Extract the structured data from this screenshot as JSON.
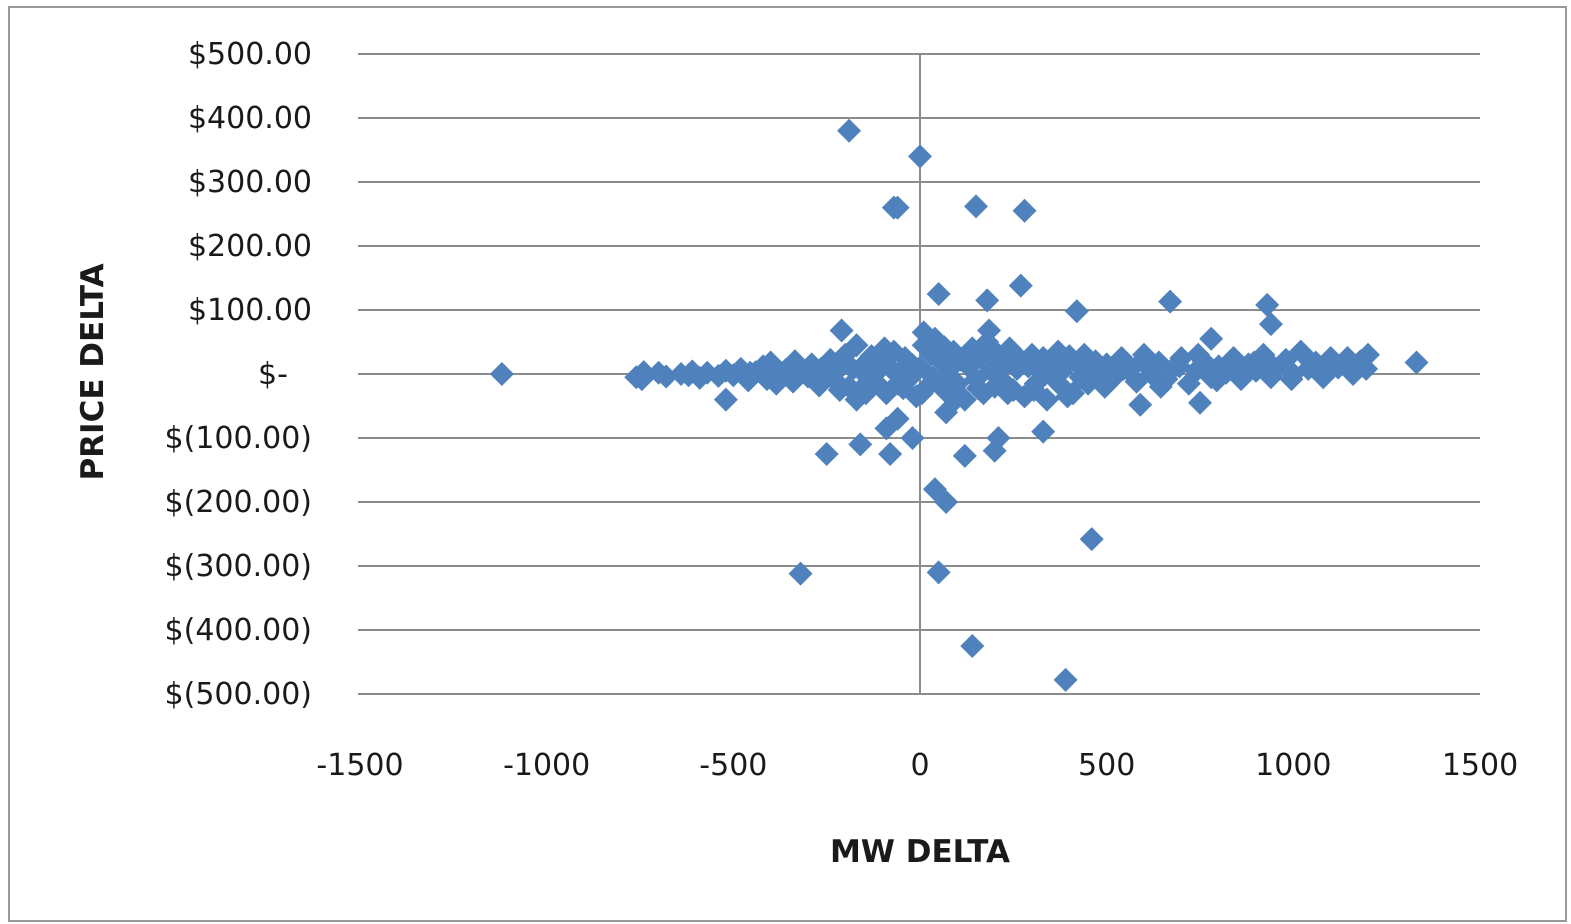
{
  "chart_data": {
    "type": "scatter",
    "xlabel": "MW DELTA",
    "ylabel": "PRICE DELTA",
    "xlim": [
      -1500,
      1500
    ],
    "ylim": [
      -500,
      500
    ],
    "grid": "horizontal major gridlines",
    "marker": "diamond",
    "color": "#4f81bd",
    "x_ticks": [
      "-1500",
      "-1000",
      "-500",
      "0",
      "500",
      "1000",
      "1500"
    ],
    "y_ticks": [
      "$500.00",
      "$400.00",
      "$300.00",
      "$200.00",
      "$100.00",
      "$-",
      "$(100.00)",
      "$(200.00)",
      "$(300.00)",
      "$(400.00)",
      "$(500.00)"
    ],
    "y_tick_values": [
      500,
      400,
      300,
      200,
      100,
      0,
      -100,
      -200,
      -300,
      -400,
      -500
    ],
    "x_tick_values": [
      -1500,
      -1000,
      -500,
      0,
      500,
      1000,
      1500
    ],
    "outliers": [
      {
        "x": -1120,
        "y": 0
      },
      {
        "x": -190,
        "y": 380
      },
      {
        "x": 0,
        "y": 340
      },
      {
        "x": -70,
        "y": 260
      },
      {
        "x": -60,
        "y": 260
      },
      {
        "x": 150,
        "y": 262
      },
      {
        "x": 280,
        "y": 255
      },
      {
        "x": 270,
        "y": 138
      },
      {
        "x": 50,
        "y": 125
      },
      {
        "x": 180,
        "y": 115
      },
      {
        "x": 420,
        "y": 98
      },
      {
        "x": 670,
        "y": 113
      },
      {
        "x": 930,
        "y": 108
      },
      {
        "x": 940,
        "y": 78
      },
      {
        "x": -210,
        "y": 68
      },
      {
        "x": 10,
        "y": 65
      },
      {
        "x": 185,
        "y": 68
      },
      {
        "x": 780,
        "y": 55
      },
      {
        "x": 1200,
        "y": 30
      },
      {
        "x": 1330,
        "y": 18
      },
      {
        "x": -520,
        "y": -40
      },
      {
        "x": -170,
        "y": -40
      },
      {
        "x": 70,
        "y": -60
      },
      {
        "x": 590,
        "y": -48
      },
      {
        "x": 750,
        "y": -45
      },
      {
        "x": 330,
        "y": -90
      },
      {
        "x": -60,
        "y": -70
      },
      {
        "x": -90,
        "y": -85
      },
      {
        "x": -20,
        "y": -100
      },
      {
        "x": 210,
        "y": -100
      },
      {
        "x": 200,
        "y": -120
      },
      {
        "x": -250,
        "y": -125
      },
      {
        "x": -160,
        "y": -110
      },
      {
        "x": -80,
        "y": -125
      },
      {
        "x": 120,
        "y": -128
      },
      {
        "x": 40,
        "y": -180
      },
      {
        "x": 70,
        "y": -200
      },
      {
        "x": 460,
        "y": -258
      },
      {
        "x": -320,
        "y": -312
      },
      {
        "x": 50,
        "y": -310
      },
      {
        "x": 140,
        "y": -425
      },
      {
        "x": 390,
        "y": -478
      }
    ],
    "cluster_points": [
      [
        -760,
        -5
      ],
      [
        -740,
        3
      ],
      [
        -700,
        2
      ],
      [
        -680,
        -4
      ],
      [
        -640,
        0
      ],
      [
        -610,
        4
      ],
      [
        -590,
        -6
      ],
      [
        -570,
        2
      ],
      [
        -540,
        -3
      ],
      [
        -520,
        5
      ],
      [
        -500,
        -2
      ],
      [
        -480,
        8
      ],
      [
        -460,
        -10
      ],
      [
        -440,
        3
      ],
      [
        -420,
        12
      ],
      [
        -410,
        -8
      ],
      [
        -400,
        18
      ],
      [
        -380,
        -5
      ],
      [
        -360,
        6
      ],
      [
        -340,
        -12
      ],
      [
        -320,
        9
      ],
      [
        -300,
        -4
      ],
      [
        -290,
        15
      ],
      [
        -270,
        -18
      ],
      [
        -250,
        5
      ],
      [
        -240,
        22
      ],
      [
        -230,
        -9
      ],
      [
        -210,
        12
      ],
      [
        -200,
        30
      ],
      [
        -190,
        -20
      ],
      [
        -180,
        8
      ],
      [
        -170,
        45
      ],
      [
        -160,
        -25
      ],
      [
        -150,
        15
      ],
      [
        -140,
        -5
      ],
      [
        -130,
        28
      ],
      [
        -120,
        -12
      ],
      [
        -110,
        6
      ],
      [
        -100,
        20
      ],
      [
        -90,
        -30
      ],
      [
        -80,
        10
      ],
      [
        -70,
        35
      ],
      [
        -60,
        -15
      ],
      [
        -50,
        5
      ],
      [
        -40,
        25
      ],
      [
        -30,
        -8
      ],
      [
        -20,
        14
      ],
      [
        -10,
        -35
      ],
      [
        0,
        10
      ],
      [
        10,
        45
      ],
      [
        20,
        -20
      ],
      [
        30,
        30
      ],
      [
        40,
        55
      ],
      [
        50,
        -10
      ],
      [
        60,
        18
      ],
      [
        70,
        -28
      ],
      [
        80,
        8
      ],
      [
        90,
        35
      ],
      [
        100,
        -15
      ],
      [
        110,
        22
      ],
      [
        120,
        -40
      ],
      [
        130,
        12
      ],
      [
        140,
        40
      ],
      [
        150,
        -8
      ],
      [
        160,
        25
      ],
      [
        170,
        -30
      ],
      [
        180,
        50
      ],
      [
        190,
        5
      ],
      [
        200,
        -20
      ],
      [
        210,
        30
      ],
      [
        220,
        -10
      ],
      [
        230,
        15
      ],
      [
        240,
        40
      ],
      [
        250,
        -25
      ],
      [
        260,
        8
      ],
      [
        270,
        22
      ],
      [
        280,
        -35
      ],
      [
        290,
        12
      ],
      [
        300,
        30
      ],
      [
        310,
        -15
      ],
      [
        320,
        5
      ],
      [
        330,
        25
      ],
      [
        340,
        -40
      ],
      [
        350,
        15
      ],
      [
        360,
        -8
      ],
      [
        370,
        35
      ],
      [
        380,
        -20
      ],
      [
        390,
        10
      ],
      [
        400,
        28
      ],
      [
        410,
        -30
      ],
      [
        420,
        18
      ],
      [
        430,
        -5
      ],
      [
        440,
        30
      ],
      [
        450,
        -15
      ],
      [
        460,
        8
      ],
      [
        470,
        20
      ],
      [
        480,
        -10
      ],
      [
        500,
        15
      ],
      [
        520,
        -5
      ],
      [
        540,
        25
      ],
      [
        560,
        5
      ],
      [
        580,
        -12
      ],
      [
        600,
        30
      ],
      [
        620,
        0
      ],
      [
        640,
        18
      ],
      [
        660,
        -8
      ],
      [
        680,
        10
      ],
      [
        700,
        25
      ],
      [
        720,
        -15
      ],
      [
        740,
        5
      ],
      [
        760,
        20
      ],
      [
        780,
        -5
      ],
      [
        800,
        12
      ],
      [
        820,
        2
      ],
      [
        840,
        25
      ],
      [
        860,
        -8
      ],
      [
        880,
        15
      ],
      [
        900,
        5
      ],
      [
        920,
        30
      ],
      [
        940,
        -5
      ],
      [
        960,
        10
      ],
      [
        980,
        22
      ],
      [
        1000,
        0
      ],
      [
        1020,
        35
      ],
      [
        1040,
        8
      ],
      [
        1060,
        18
      ],
      [
        1080,
        -5
      ],
      [
        1100,
        25
      ],
      [
        1120,
        10
      ],
      [
        1140,
        15
      ],
      [
        1160,
        0
      ],
      [
        1180,
        20
      ],
      [
        -745,
        -8
      ],
      [
        -620,
        -2
      ],
      [
        -455,
        2
      ],
      [
        -385,
        -15
      ],
      [
        -335,
        20
      ],
      [
        -265,
        8
      ],
      [
        -215,
        -25
      ],
      [
        -145,
        -30
      ],
      [
        -95,
        40
      ],
      [
        -45,
        -22
      ],
      [
        5,
        -30
      ],
      [
        35,
        -5
      ],
      [
        65,
        42
      ],
      [
        95,
        -40
      ],
      [
        125,
        15
      ],
      [
        155,
        -22
      ],
      [
        195,
        35
      ],
      [
        235,
        -30
      ],
      [
        265,
        18
      ],
      [
        305,
        -25
      ],
      [
        345,
        10
      ],
      [
        395,
        -35
      ],
      [
        445,
        22
      ],
      [
        495,
        -20
      ],
      [
        545,
        8
      ],
      [
        595,
        20
      ],
      [
        645,
        -20
      ],
      [
        695,
        12
      ],
      [
        745,
        30
      ],
      [
        795,
        -10
      ],
      [
        845,
        8
      ],
      [
        895,
        18
      ],
      [
        945,
        12
      ],
      [
        995,
        -8
      ],
      [
        1045,
        20
      ],
      [
        1095,
        5
      ],
      [
        1145,
        25
      ],
      [
        1195,
        8
      ]
    ]
  }
}
